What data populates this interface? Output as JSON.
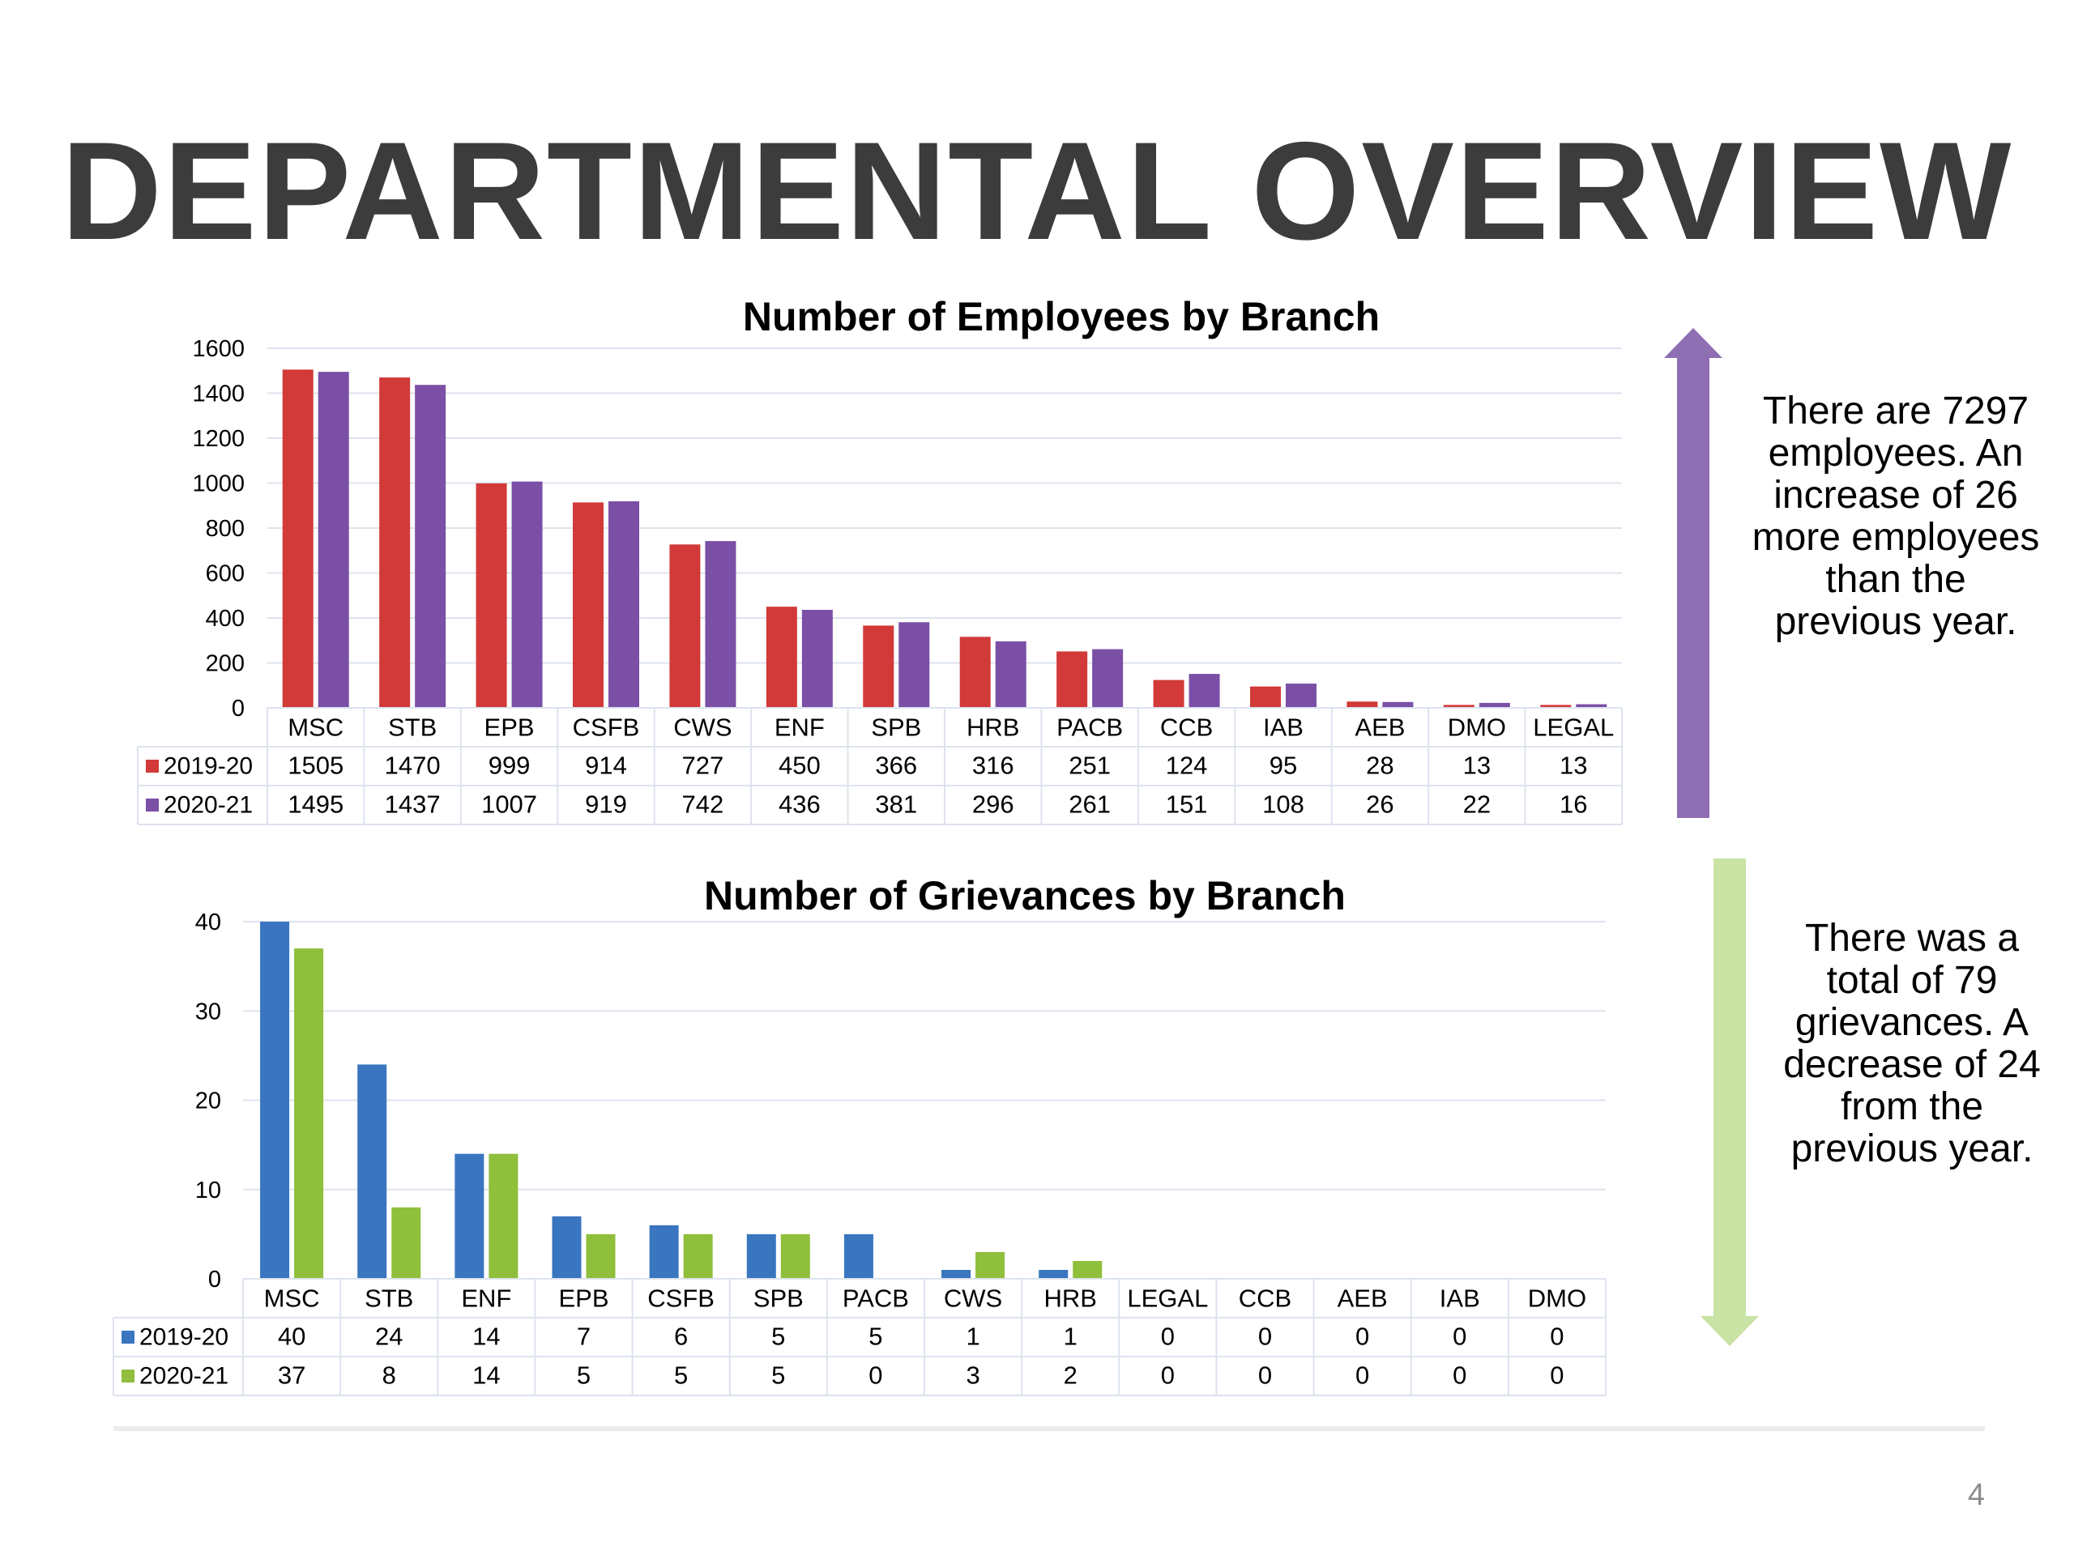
{
  "slide": {
    "title": "DEPARTMENTAL OVERVIEW",
    "employees_note": "There are 7297 employees. An increase of 26 more employees than the previous year.",
    "grievances_note": "There was a total of 79 grievances. A decrease of 24 from the previous year.",
    "page_number": "4",
    "colors": {
      "employees_arrow": "#8e6fb3",
      "grievances_arrow": "#c8e3a4",
      "title": "#3c3c3c"
    }
  },
  "chart_data": [
    {
      "type": "bar",
      "title": "Number of Employees by Branch",
      "categories": [
        "MSC",
        "STB",
        "EPB",
        "CSFB",
        "CWS",
        "ENF",
        "SPB",
        "HRB",
        "PACB",
        "CCB",
        "IAB",
        "AEB",
        "DMO",
        "LEGAL"
      ],
      "series": [
        {
          "name": "2019-20",
          "color": "#d13a38",
          "values": [
            1505,
            1470,
            999,
            914,
            727,
            450,
            366,
            316,
            251,
            124,
            95,
            28,
            13,
            13
          ]
        },
        {
          "name": "2020-21",
          "color": "#7b4fa6",
          "values": [
            1495,
            1437,
            1007,
            919,
            742,
            436,
            381,
            296,
            261,
            151,
            108,
            26,
            22,
            16
          ]
        }
      ],
      "ylim": [
        0,
        1600
      ],
      "yticks": [
        0,
        200,
        400,
        600,
        800,
        1000,
        1200,
        1400,
        1600
      ],
      "grid": true,
      "data_table": true
    },
    {
      "type": "bar",
      "title": "Number of Grievances by Branch",
      "categories": [
        "MSC",
        "STB",
        "ENF",
        "EPB",
        "CSFB",
        "SPB",
        "PACB",
        "CWS",
        "HRB",
        "LEGAL",
        "CCB",
        "AEB",
        "IAB",
        "DMO"
      ],
      "series": [
        {
          "name": "2019-20",
          "color": "#3a75c0",
          "values": [
            40,
            24,
            14,
            7,
            6,
            5,
            5,
            1,
            1,
            0,
            0,
            0,
            0,
            0
          ]
        },
        {
          "name": "2020-21",
          "color": "#8fbf3b",
          "values": [
            37,
            8,
            14,
            5,
            5,
            5,
            0,
            3,
            2,
            0,
            0,
            0,
            0,
            0
          ]
        }
      ],
      "ylim": [
        0,
        40
      ],
      "yticks": [
        0,
        10,
        20,
        30,
        40
      ],
      "grid": true,
      "data_table": true
    }
  ]
}
